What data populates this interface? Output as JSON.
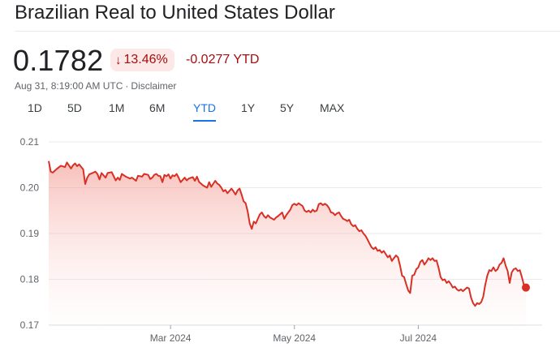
{
  "header": {
    "title": "Brazilian Real to United States Dollar"
  },
  "quote": {
    "price": "0.1782",
    "change_percent": "13.46%",
    "change_direction": "down",
    "ytd_change": "-0.0277 YTD",
    "timestamp": "Aug 31, 8:19:00 AM UTC",
    "separator": "·",
    "disclaimer": "Disclaimer"
  },
  "tabs": [
    {
      "label": "1D",
      "active": false
    },
    {
      "label": "5D",
      "active": false
    },
    {
      "label": "1M",
      "active": false
    },
    {
      "label": "6M",
      "active": false
    },
    {
      "label": "YTD",
      "active": true
    },
    {
      "label": "1Y",
      "active": false
    },
    {
      "label": "5Y",
      "active": false
    },
    {
      "label": "MAX",
      "active": false
    }
  ],
  "colors": {
    "line": "#d93025",
    "negative_text": "#a50e0e",
    "negative_bg": "#fce8e6",
    "active_tab": "#1a73e8"
  },
  "chart_data": {
    "type": "area",
    "ylim": [
      0.17,
      0.21
    ],
    "yticks": [
      "0.21",
      "0.20",
      "0.19",
      "0.18",
      "0.17"
    ],
    "ytick_values": [
      0.21,
      0.2,
      0.19,
      0.18,
      0.17
    ],
    "xticks": [
      "Mar 2024",
      "May 2024",
      "Jul 2024"
    ],
    "xtick_days": [
      60,
      121,
      182
    ],
    "x_range_days": [
      0,
      243
    ],
    "grid": true,
    "series": [
      {
        "values": [
          [
            0,
            0.2058
          ],
          [
            1,
            0.2035
          ],
          [
            2,
            0.2033
          ],
          [
            4,
            0.2041
          ],
          [
            6,
            0.2048
          ],
          [
            8,
            0.2045
          ],
          [
            9,
            0.2055
          ],
          [
            11,
            0.2042
          ],
          [
            12,
            0.2049
          ],
          [
            13,
            0.2053
          ],
          [
            14,
            0.2047
          ],
          [
            15,
            0.2051
          ],
          [
            17,
            0.204
          ],
          [
            18,
            0.2008
          ],
          [
            19,
            0.2022
          ],
          [
            20,
            0.2029
          ],
          [
            22,
            0.2033
          ],
          [
            23,
            0.2035
          ],
          [
            24,
            0.203
          ],
          [
            25,
            0.2018
          ],
          [
            26,
            0.2032
          ],
          [
            28,
            0.2022
          ],
          [
            29,
            0.2032
          ],
          [
            31,
            0.2034
          ],
          [
            33,
            0.2016
          ],
          [
            34,
            0.2022
          ],
          [
            35,
            0.2017
          ],
          [
            36,
            0.203
          ],
          [
            38,
            0.2024
          ],
          [
            40,
            0.202
          ],
          [
            41,
            0.2022
          ],
          [
            43,
            0.2015
          ],
          [
            44,
            0.2026
          ],
          [
            46,
            0.2024
          ],
          [
            47,
            0.203
          ],
          [
            49,
            0.2028
          ],
          [
            50,
            0.2019
          ],
          [
            51,
            0.2022
          ],
          [
            52,
            0.2028
          ],
          [
            53,
            0.203
          ],
          [
            54,
            0.2026
          ],
          [
            55,
            0.2025
          ],
          [
            56,
            0.2012
          ],
          [
            57,
            0.2028
          ],
          [
            58,
            0.2025
          ],
          [
            59,
            0.2029
          ],
          [
            60,
            0.202
          ],
          [
            61,
            0.2027
          ],
          [
            62,
            0.2025
          ],
          [
            63,
            0.203
          ],
          [
            64,
            0.2022
          ],
          [
            65,
            0.2012
          ],
          [
            67,
            0.2022
          ],
          [
            68,
            0.2016
          ],
          [
            69,
            0.202
          ],
          [
            71,
            0.2023
          ],
          [
            72,
            0.2015
          ],
          [
            73,
            0.2024
          ],
          [
            74,
            0.2013
          ],
          [
            76,
            0.2005
          ],
          [
            78,
            0.2
          ],
          [
            79,
            0.2012
          ],
          [
            80,
            0.2002
          ],
          [
            82,
            0.2015
          ],
          [
            83,
            0.2009
          ],
          [
            84,
            0.2006
          ],
          [
            85,
            0.2
          ],
          [
            86,
            0.1992
          ],
          [
            87,
            0.1995
          ],
          [
            88,
            0.1988
          ],
          [
            89,
            0.1993
          ],
          [
            90,
            0.1998
          ],
          [
            91,
            0.1992
          ],
          [
            92,
            0.1985
          ],
          [
            93,
            0.1994
          ],
          [
            94,
            0.1998
          ],
          [
            95,
            0.1985
          ],
          [
            96,
            0.197
          ],
          [
            97,
            0.1966
          ],
          [
            98,
            0.1948
          ],
          [
            99,
            0.1922
          ],
          [
            100,
            0.191
          ],
          [
            101,
            0.1926
          ],
          [
            102,
            0.1922
          ],
          [
            103,
            0.1932
          ],
          [
            104,
            0.1942
          ],
          [
            105,
            0.1946
          ],
          [
            106,
            0.1938
          ],
          [
            107,
            0.1934
          ],
          [
            108,
            0.194
          ],
          [
            109,
            0.1935
          ],
          [
            111,
            0.193
          ],
          [
            112,
            0.1935
          ],
          [
            113,
            0.1938
          ],
          [
            115,
            0.1946
          ],
          [
            116,
            0.1932
          ],
          [
            117,
            0.194
          ],
          [
            119,
            0.1952
          ],
          [
            120,
            0.1962
          ],
          [
            121,
            0.1965
          ],
          [
            122,
            0.1962
          ],
          [
            123,
            0.1966
          ],
          [
            125,
            0.196
          ],
          [
            126,
            0.195
          ],
          [
            127,
            0.1947
          ],
          [
            128,
            0.195
          ],
          [
            129,
            0.1946
          ],
          [
            130,
            0.1952
          ],
          [
            131,
            0.1948
          ],
          [
            132,
            0.195
          ],
          [
            133,
            0.1964
          ],
          [
            134,
            0.1966
          ],
          [
            135,
            0.1962
          ],
          [
            136,
            0.1965
          ],
          [
            137,
            0.1962
          ],
          [
            138,
            0.1956
          ],
          [
            139,
            0.1946
          ],
          [
            140,
            0.1945
          ],
          [
            141,
            0.194
          ],
          [
            142,
            0.1944
          ],
          [
            143,
            0.1946
          ],
          [
            144,
            0.1938
          ],
          [
            145,
            0.1932
          ],
          [
            146,
            0.193
          ],
          [
            147,
            0.1927
          ],
          [
            148,
            0.193
          ],
          [
            149,
            0.192
          ],
          [
            150,
            0.1916
          ],
          [
            151,
            0.1918
          ],
          [
            152,
            0.191
          ],
          [
            153,
            0.1905
          ],
          [
            154,
            0.1907
          ],
          [
            155,
            0.19
          ],
          [
            156,
            0.1895
          ],
          [
            157,
            0.1887
          ],
          [
            158,
            0.1878
          ],
          [
            159,
            0.187
          ],
          [
            160,
            0.1866
          ],
          [
            161,
            0.187
          ],
          [
            162,
            0.1862
          ],
          [
            163,
            0.1864
          ],
          [
            164,
            0.1858
          ],
          [
            165,
            0.1862
          ],
          [
            166,
            0.1855
          ],
          [
            167,
            0.1848
          ],
          [
            168,
            0.1852
          ],
          [
            169,
            0.184
          ],
          [
            170,
            0.1846
          ],
          [
            171,
            0.1852
          ],
          [
            172,
            0.1848
          ],
          [
            173,
            0.183
          ],
          [
            174,
            0.1808
          ],
          [
            175,
            0.1805
          ],
          [
            176,
            0.179
          ],
          [
            177,
            0.1776
          ],
          [
            178,
            0.177
          ],
          [
            179,
            0.1808
          ],
          [
            180,
            0.181
          ],
          [
            181,
            0.1822
          ],
          [
            182,
            0.1826
          ],
          [
            183,
            0.1838
          ],
          [
            184,
            0.1842
          ],
          [
            185,
            0.1832
          ],
          [
            186,
            0.1838
          ],
          [
            187,
            0.1846
          ],
          [
            188,
            0.1842
          ],
          [
            189,
            0.1846
          ],
          [
            190,
            0.184
          ],
          [
            191,
            0.1841
          ],
          [
            192,
            0.1825
          ],
          [
            193,
            0.1805
          ],
          [
            194,
            0.1798
          ],
          [
            195,
            0.18
          ],
          [
            196,
            0.1792
          ],
          [
            197,
            0.1796
          ],
          [
            198,
            0.179
          ],
          [
            199,
            0.1782
          ],
          [
            200,
            0.1784
          ],
          [
            201,
            0.1778
          ],
          [
            202,
            0.1775
          ],
          [
            203,
            0.1778
          ],
          [
            204,
            0.1774
          ],
          [
            205,
            0.1778
          ],
          [
            206,
            0.1782
          ],
          [
            207,
            0.178
          ],
          [
            208,
            0.176
          ],
          [
            209,
            0.1748
          ],
          [
            210,
            0.1742
          ],
          [
            211,
            0.1748
          ],
          [
            212,
            0.1746
          ],
          [
            213,
            0.175
          ],
          [
            214,
            0.1762
          ],
          [
            215,
            0.1788
          ],
          [
            216,
            0.1808
          ],
          [
            217,
            0.182
          ],
          [
            218,
            0.1818
          ],
          [
            219,
            0.1826
          ],
          [
            220,
            0.1818
          ],
          [
            221,
            0.1822
          ],
          [
            222,
            0.1832
          ],
          [
            223,
            0.1836
          ],
          [
            224,
            0.1846
          ],
          [
            225,
            0.183
          ],
          [
            226,
            0.1818
          ],
          [
            227,
            0.1792
          ],
          [
            228,
            0.1815
          ],
          [
            229,
            0.1822
          ],
          [
            230,
            0.1824
          ],
          [
            231,
            0.1818
          ],
          [
            232,
            0.182
          ],
          [
            233,
            0.1805
          ],
          [
            234,
            0.1788
          ],
          [
            235,
            0.1782
          ]
        ]
      }
    ]
  }
}
